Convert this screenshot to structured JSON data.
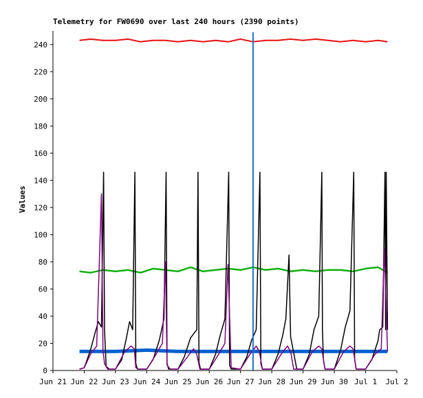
{
  "chart_data": {
    "type": "line",
    "title": "Telemetry for FW0690 over last 240 hours (2390 points)",
    "ylabel": "Values",
    "xlabel": "",
    "x_unit": "days since Jun 21 00:00",
    "xlim": [
      0,
      11
    ],
    "ylim": [
      0,
      250
    ],
    "x_ticks": [
      {
        "label": "Jun 21",
        "value": 0
      },
      {
        "label": "Jun 22",
        "value": 1
      },
      {
        "label": "Jun 23",
        "value": 2
      },
      {
        "label": "Jun 24",
        "value": 3
      },
      {
        "label": "Jun 25",
        "value": 4
      },
      {
        "label": "Jun 26",
        "value": 5
      },
      {
        "label": "Jun 27",
        "value": 6
      },
      {
        "label": "Jun 28",
        "value": 7
      },
      {
        "label": "Jun 29",
        "value": 8
      },
      {
        "label": "Jun 30",
        "value": 9
      },
      {
        "label": "Jul 1",
        "value": 10
      },
      {
        "label": "Jul 2",
        "value": 11
      }
    ],
    "y_ticks": [
      0,
      20,
      40,
      60,
      80,
      100,
      120,
      140,
      160,
      180,
      200,
      220,
      240
    ],
    "grid": false,
    "legend": "none",
    "marker_line": {
      "x": 6.4,
      "color": "#1f6fd6"
    },
    "series": [
      {
        "color": "#e81010",
        "x": [
          0.85,
          1.2,
          1.6,
          2.0,
          2.4,
          2.8,
          3.2,
          3.6,
          4.0,
          4.4,
          4.8,
          5.2,
          5.6,
          6.0,
          6.4,
          6.8,
          7.2,
          7.6,
          8.0,
          8.4,
          8.8,
          9.2,
          9.6,
          10.0,
          10.4,
          10.7
        ],
        "values": [
          243,
          244,
          243,
          243,
          244,
          242,
          243,
          243,
          242,
          243,
          242,
          243,
          242,
          244,
          242,
          243,
          243,
          244,
          243,
          244,
          243,
          242,
          243,
          242,
          243,
          242
        ]
      },
      {
        "color": "#10b010",
        "x": [
          0.85,
          1.2,
          1.6,
          2.0,
          2.4,
          2.8,
          3.2,
          3.6,
          4.0,
          4.4,
          4.8,
          5.2,
          5.6,
          6.0,
          6.4,
          6.8,
          7.2,
          7.6,
          8.0,
          8.4,
          8.8,
          9.2,
          9.6,
          10.0,
          10.4,
          10.7
        ],
        "values": [
          73,
          72,
          74,
          73,
          74,
          72,
          75,
          74,
          73,
          76,
          73,
          74,
          75,
          74,
          76,
          74,
          75,
          73,
          74,
          73,
          74,
          74,
          73,
          75,
          76,
          72
        ]
      },
      {
        "color": "#0060d0",
        "x": [
          0.85,
          2.0,
          3.0,
          4.0,
          5.0,
          6.0,
          7.0,
          8.0,
          9.0,
          10.0,
          10.7
        ],
        "values": [
          14,
          14,
          15,
          14,
          14,
          14,
          14,
          14,
          14,
          14,
          14
        ]
      },
      {
        "color": "#000000",
        "x": [
          0.85,
          1.0,
          1.2,
          1.35,
          1.45,
          1.55,
          1.62,
          1.65,
          1.7,
          1.8,
          2.0,
          2.2,
          2.35,
          2.45,
          2.55,
          2.62,
          2.65,
          2.7,
          2.8,
          3.0,
          3.2,
          3.4,
          3.55,
          3.62,
          3.65,
          3.7,
          3.8,
          4.0,
          4.2,
          4.4,
          4.6,
          4.64,
          4.67,
          4.72,
          4.8,
          5.0,
          5.2,
          5.35,
          5.5,
          5.62,
          5.65,
          5.7,
          5.8,
          6.0,
          6.2,
          6.35,
          6.5,
          6.62,
          6.65,
          6.7,
          6.8,
          7.0,
          7.2,
          7.35,
          7.45,
          7.55,
          7.6,
          7.8,
          8.0,
          8.2,
          8.35,
          8.5,
          8.6,
          8.62,
          8.65,
          8.7,
          8.8,
          9.0,
          9.2,
          9.35,
          9.5,
          9.62,
          9.65,
          9.7,
          9.8,
          10.0,
          10.2,
          10.4,
          10.45,
          10.55,
          10.62,
          10.64,
          10.66,
          10.7
        ],
        "values": [
          1,
          2,
          15,
          28,
          36,
          32,
          146,
          30,
          3,
          1,
          1,
          8,
          24,
          36,
          30,
          146,
          5,
          1,
          1,
          1,
          8,
          22,
          38,
          146,
          5,
          1,
          1,
          1,
          10,
          24,
          30,
          146,
          6,
          1,
          1,
          1,
          12,
          26,
          38,
          146,
          4,
          1,
          1,
          1,
          10,
          22,
          30,
          146,
          5,
          1,
          1,
          1,
          12,
          26,
          38,
          85,
          25,
          1,
          1,
          12,
          30,
          40,
          146,
          30,
          8,
          1,
          1,
          1,
          15,
          32,
          44,
          146,
          8,
          1,
          1,
          1,
          8,
          22,
          30,
          32,
          146,
          30,
          146,
          30
        ]
      },
      {
        "color": "#800080",
        "x": [
          0.85,
          1.0,
          1.2,
          1.4,
          1.55,
          1.6,
          1.65,
          1.75,
          2.0,
          2.3,
          2.5,
          2.6,
          2.65,
          2.75,
          3.0,
          3.3,
          3.5,
          3.6,
          3.65,
          3.75,
          4.0,
          4.3,
          4.5,
          4.6,
          4.7,
          5.0,
          5.3,
          5.5,
          5.6,
          5.7,
          6.0,
          6.3,
          6.5,
          6.6,
          6.7,
          7.0,
          7.3,
          7.5,
          7.6,
          7.7,
          8.0,
          8.3,
          8.5,
          8.6,
          8.7,
          9.0,
          9.3,
          9.5,
          9.6,
          9.7,
          10.0,
          10.3,
          10.5,
          10.6,
          10.7
        ],
        "values": [
          1,
          2,
          12,
          18,
          130,
          15,
          5,
          1,
          1,
          14,
          18,
          16,
          2,
          1,
          1,
          12,
          20,
          80,
          4,
          1,
          1,
          10,
          16,
          12,
          1,
          1,
          12,
          20,
          78,
          2,
          1,
          12,
          18,
          14,
          1,
          1,
          12,
          18,
          14,
          1,
          1,
          14,
          18,
          16,
          1,
          1,
          14,
          18,
          16,
          1,
          1,
          12,
          16,
          90,
          14
        ]
      }
    ]
  }
}
